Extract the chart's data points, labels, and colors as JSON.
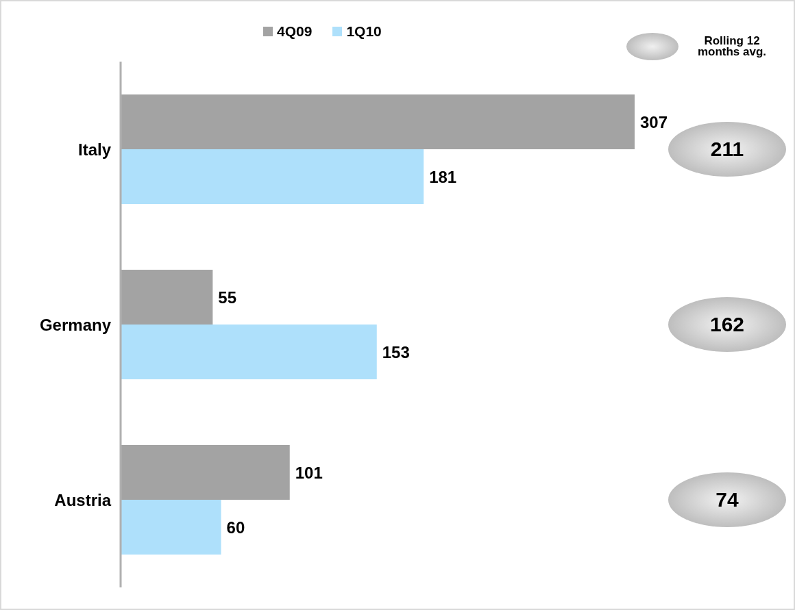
{
  "chart_data": {
    "type": "bar",
    "orientation": "horizontal",
    "categories": [
      "Italy",
      "Germany",
      "Austria"
    ],
    "series": [
      {
        "name": "4Q09",
        "color": "#a3a3a3",
        "values": [
          307,
          55,
          101
        ]
      },
      {
        "name": "1Q10",
        "color": "#aee0fb",
        "values": [
          181,
          153,
          60
        ]
      }
    ],
    "data_labels": true,
    "legend": "top",
    "grid": false,
    "annotations": [
      "Rolling 12 months avg.",
      "211",
      "162",
      "74"
    ]
  }
}
